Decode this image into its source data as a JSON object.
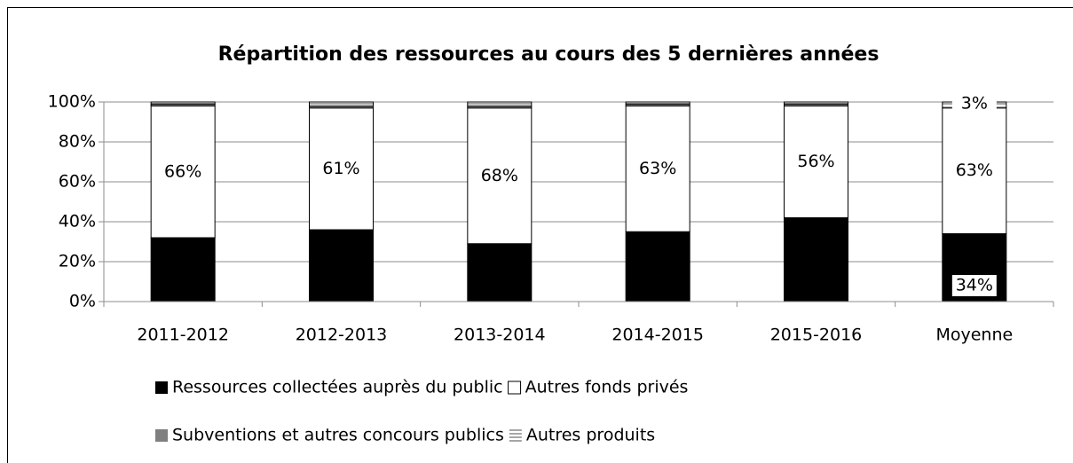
{
  "chart_data": {
    "type": "stacked_bar",
    "title": "Répartition des ressources au cours des 5 dernières années",
    "categories": [
      "2011-2012",
      "2012-2013",
      "2013-2014",
      "2014-2015",
      "2015-2016",
      "Moyenne"
    ],
    "series": [
      {
        "name": "Ressources collectées auprès du public",
        "color": "#000000",
        "values": [
          32,
          36,
          29,
          35,
          42,
          34
        ],
        "value_labels": [
          null,
          null,
          null,
          null,
          null,
          "34%"
        ]
      },
      {
        "name": "Autres fonds privés",
        "color": "#ffffff",
        "values": [
          66,
          61,
          68,
          63,
          56,
          63
        ],
        "value_labels": [
          "66%",
          "61%",
          "68%",
          "63%",
          "56%",
          "63%"
        ]
      },
      {
        "name": "Subventions et autres concours publics",
        "color": "#7f7f7f",
        "values": [
          1,
          1,
          1,
          1,
          1,
          0
        ],
        "value_labels": [
          null,
          null,
          null,
          null,
          null,
          null
        ]
      },
      {
        "name": "Autres produits",
        "color": "#a6a6a6",
        "values": [
          1,
          2,
          2,
          1,
          1,
          3
        ],
        "value_labels": [
          null,
          null,
          null,
          null,
          null,
          "3%"
        ]
      }
    ],
    "ylim": [
      0,
      100
    ],
    "yticks": [
      {
        "value": 0,
        "label": "0%"
      },
      {
        "value": 20,
        "label": "20%"
      },
      {
        "value": 40,
        "label": "40%"
      },
      {
        "value": 60,
        "label": "60%"
      },
      {
        "value": 80,
        "label": "80%"
      },
      {
        "value": 100,
        "label": "100%"
      }
    ],
    "grid": true
  }
}
